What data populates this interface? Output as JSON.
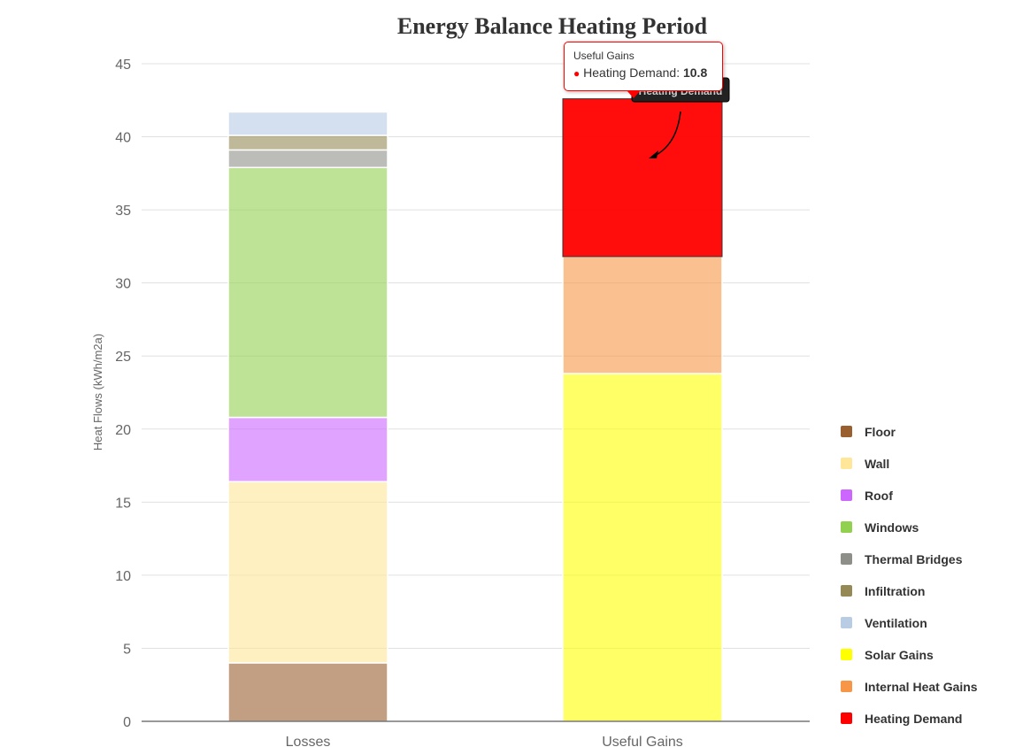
{
  "chart_data": {
    "type": "bar",
    "stacked": true,
    "title": "Energy Balance Heating Period",
    "ylabel": "Heat Flows (kWh/m2a)",
    "xlabel": "",
    "ylim": [
      0,
      45
    ],
    "yticks": [
      0,
      5,
      10,
      15,
      20,
      25,
      30,
      35,
      40,
      45
    ],
    "grid": true,
    "legend_placement": "right",
    "categories": [
      "Losses",
      "Useful Gains"
    ],
    "series": [
      {
        "name": "Floor",
        "values": [
          4.0,
          0
        ],
        "color": "#9a5f2e"
      },
      {
        "name": "Wall",
        "values": [
          12.4,
          0
        ],
        "color": "#ffe699"
      },
      {
        "name": "Roof",
        "values": [
          4.4,
          0
        ],
        "color": "#cc66ff"
      },
      {
        "name": "Windows",
        "values": [
          17.1,
          0
        ],
        "color": "#92d050"
      },
      {
        "name": "Thermal Bridges",
        "values": [
          1.2,
          0
        ],
        "color": "#8f8f8a"
      },
      {
        "name": "Infiltration",
        "values": [
          1.0,
          0
        ],
        "color": "#958a55"
      },
      {
        "name": "Ventilation",
        "values": [
          1.6,
          0
        ],
        "color": "#b8cce4"
      },
      {
        "name": "Solar Gains",
        "values": [
          0,
          23.8
        ],
        "color": "#ffff00"
      },
      {
        "name": "Internal Heat Gains",
        "values": [
          0,
          8.0
        ],
        "color": "#f79646"
      },
      {
        "name": "Heating Demand",
        "values": [
          0,
          10.8
        ],
        "color": "#ff0000"
      }
    ],
    "annotation": "Heating Demand"
  },
  "tooltip": {
    "category": "Useful Gains",
    "series": "Heating Demand:",
    "value": "10.8"
  }
}
